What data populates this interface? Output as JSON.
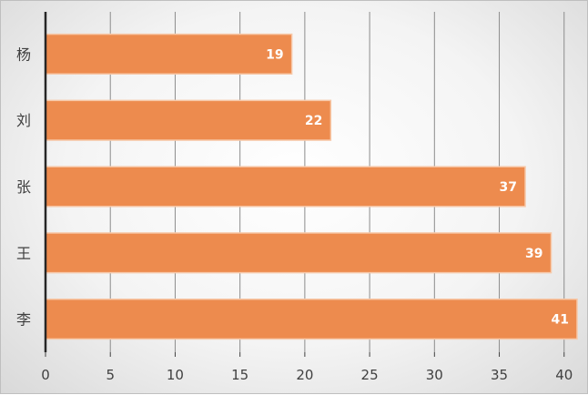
{
  "chart_data": {
    "type": "bar",
    "orientation": "horizontal",
    "categories": [
      "杨",
      "刘",
      "张",
      "王",
      "李"
    ],
    "values": [
      19,
      22,
      37,
      39,
      41
    ],
    "xlim": [
      0,
      41
    ],
    "xticks": [
      0,
      5,
      10,
      15,
      20,
      25,
      30,
      35,
      40
    ],
    "grid": "vertical",
    "data_labels": true,
    "bar_color": "#ed8b4e",
    "bar_border_color": "#f7c8a8",
    "title": "",
    "xlabel": "",
    "ylabel": ""
  }
}
